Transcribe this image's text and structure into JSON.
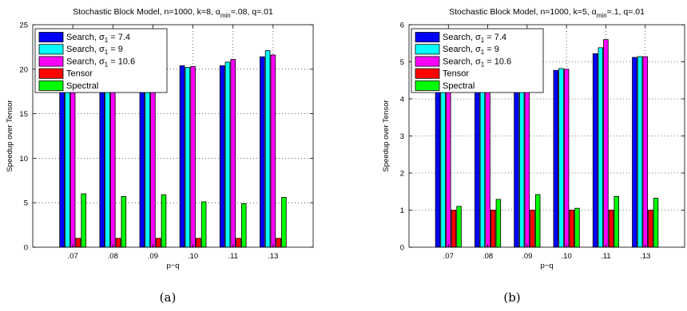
{
  "captions": [
    "(a)",
    "(b)"
  ],
  "chart_data": [
    {
      "type": "bar",
      "title": [
        "Stochastic Block Model, n=1000, k=8, α",
        "min",
        "=.08, q=.01"
      ],
      "xlabel": "p−q",
      "ylabel": "Speedup over Tensor",
      "categories": [
        ".07",
        ".08",
        ".09",
        ".10",
        ".11",
        ".13"
      ],
      "ylim": [
        0,
        25
      ],
      "yticks": [
        0,
        5,
        10,
        15,
        20,
        25
      ],
      "grid": true,
      "legend_position": "top-left",
      "series": [
        {
          "name": [
            "Search, σ",
            "1",
            " = 7.4"
          ],
          "color": "#0000ff",
          "values": [
            20.1,
            20.0,
            19.9,
            20.4,
            20.4,
            21.4
          ]
        },
        {
          "name": [
            "Search, σ",
            "1",
            " = 9"
          ],
          "color": "#00ffff",
          "values": [
            20.1,
            20.2,
            19.8,
            20.2,
            20.8,
            22.1
          ]
        },
        {
          "name": [
            "Search, σ",
            "1",
            " = 10.6"
          ],
          "color": "#ff00ff",
          "values": [
            20.0,
            20.1,
            19.6,
            20.3,
            21.1,
            21.6
          ]
        },
        {
          "name": [
            "Tensor",
            "",
            ""
          ],
          "color": "#ff0000",
          "values": [
            1,
            1,
            1,
            1,
            1,
            1
          ]
        },
        {
          "name": [
            "Spectral",
            "",
            ""
          ],
          "color": "#00ff00",
          "values": [
            6.0,
            5.7,
            5.9,
            5.1,
            4.9,
            5.6
          ]
        }
      ]
    },
    {
      "type": "bar",
      "title": [
        "Stochastic Block Model, n=1000, k=5, α",
        "min",
        "=.1, q=.01"
      ],
      "xlabel": "p−q",
      "ylabel": "Speedup over Tensor",
      "categories": [
        ".07",
        ".08",
        ".09",
        ".10",
        ".11",
        ".13"
      ],
      "ylim": [
        0,
        6
      ],
      "yticks": [
        0,
        1,
        2,
        3,
        4,
        5,
        6
      ],
      "grid": true,
      "legend_position": "top-left",
      "series": [
        {
          "name": [
            "Search, σ",
            "1",
            " = 7.4"
          ],
          "color": "#0000ff",
          "values": [
            4.2,
            4.3,
            4.7,
            4.77,
            5.22,
            5.12
          ]
        },
        {
          "name": [
            "Search, σ",
            "1",
            " = 9"
          ],
          "color": "#00ffff",
          "values": [
            4.3,
            4.4,
            4.65,
            4.82,
            5.38,
            5.14
          ]
        },
        {
          "name": [
            "Search, σ",
            "1",
            " = 10.6"
          ],
          "color": "#ff00ff",
          "values": [
            4.25,
            4.35,
            4.6,
            4.8,
            5.6,
            5.14
          ]
        },
        {
          "name": [
            "Tensor",
            "",
            ""
          ],
          "color": "#ff0000",
          "values": [
            1,
            1,
            1,
            1,
            1,
            1
          ]
        },
        {
          "name": [
            "Spectral",
            "",
            ""
          ],
          "color": "#00ff00",
          "values": [
            1.1,
            1.29,
            1.42,
            1.05,
            1.37,
            1.32
          ]
        }
      ]
    }
  ]
}
